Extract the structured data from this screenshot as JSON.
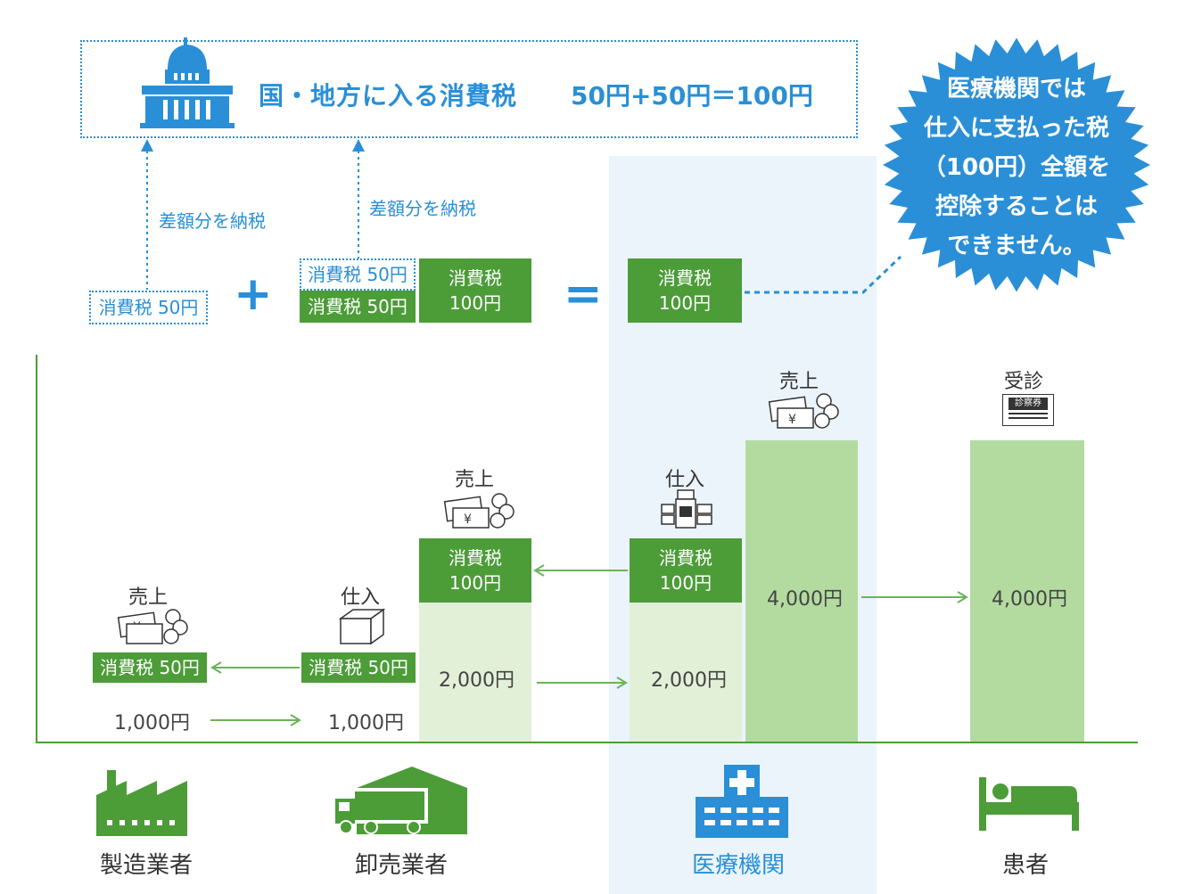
{
  "header": {
    "title": "国・地方に入る消費税",
    "equation": "50円+50円＝100円"
  },
  "notes": {
    "pay_diff_1": "差額分を納税",
    "pay_diff_2": "差額分を納税"
  },
  "badge": {
    "line1": "医療機関では",
    "line2": "仕入に支払った税",
    "line3": "（100円）全額を",
    "line4": "控除することは",
    "line5": "できません。"
  },
  "equation_row": {
    "tax_a": "消費税 50円",
    "plus": "+",
    "tax_b_top": "消費税 50円",
    "tax_b_bottom": "消費税 50円",
    "tax_c_line1": "消費税",
    "tax_c_line2": "100円",
    "equals": "=",
    "tax_d_line1": "消費税",
    "tax_d_line2": "100円"
  },
  "flow": {
    "mfr_sales_label": "売上",
    "mfr_tax": "消費税 50円",
    "mfr_amount": "1,000円",
    "wh_purchase_label": "仕入",
    "wh_tax": "消費税 50円",
    "wh_amount": "1,000円",
    "wh_sales_label": "売上",
    "wh_sales_tax_line1": "消費税",
    "wh_sales_tax_line2": "100円",
    "wh_sales_amount": "2,000円",
    "med_purchase_label": "仕入",
    "med_purchase_tax_line1": "消費税",
    "med_purchase_tax_line2": "100円",
    "med_purchase_amount": "2,000円",
    "med_sales_label": "売上",
    "med_sales_amount": "4,000円",
    "patient_label": "受診",
    "patient_amount": "4,000円",
    "ticket_text": "診察券"
  },
  "categories": {
    "manufacturer": "製造業者",
    "wholesaler": "卸売業者",
    "medical": "医療機関",
    "patient": "患者"
  },
  "colors": {
    "blue": "#2a8fd6",
    "green_dark": "#4c9c38",
    "green_mid": "#b3dba0",
    "green_light": "#e2f0d8",
    "highlight": "#eaf4fa"
  }
}
